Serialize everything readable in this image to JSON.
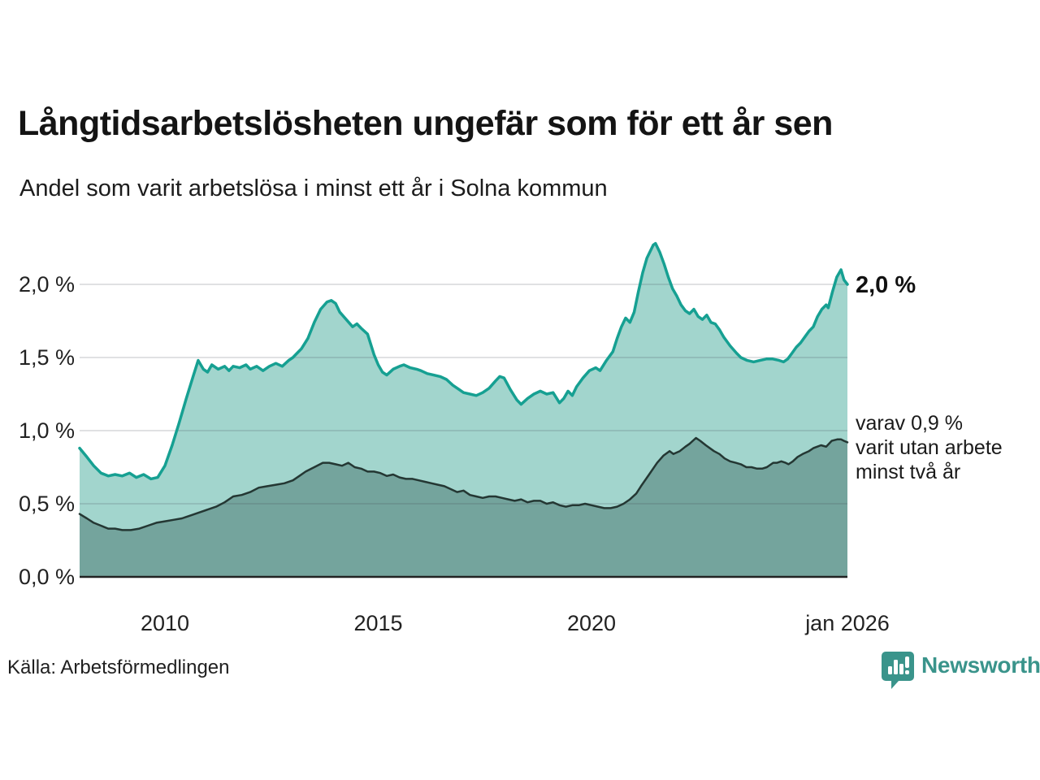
{
  "header": {
    "title": "Långtidsarbetslösheten ungefär som för ett år sen",
    "subtitle": "Andel som varit arbetslösa i minst ett år i Solna kommun"
  },
  "annotations": {
    "latest_total": "2,0 %",
    "subset_line1": "varav 0,9 %",
    "subset_line2": "varit utan arbete",
    "subset_line3": "minst två år"
  },
  "footer": {
    "source": "Källa: Arbetsförmedlingen",
    "brand": "Newsworthy"
  },
  "colors": {
    "long_term_line": "#16a092",
    "long_term_fill": "#a2d5cd",
    "two_year_line": "#243733",
    "two_year_fill": "#74a49d",
    "gridline": "rgba(60,70,80,0.16)",
    "axis": "#222222",
    "brand_teal": "#3a948b",
    "text": "#1a1a1a"
  },
  "chart_data": {
    "type": "area",
    "title": "Långtidsarbetslösheten ungefär som för ett år sen",
    "subtitle": "Andel som varit arbetslösa i minst ett år i Solna kommun",
    "xlabel": "",
    "ylabel": "",
    "x_domain": [
      2008,
      2026
    ],
    "y_domain": [
      0,
      2.4
    ],
    "grid": true,
    "legend_position": "none",
    "y_ticks": [
      {
        "value": 0.0,
        "label": "0,0 %"
      },
      {
        "value": 0.5,
        "label": "0,5 %"
      },
      {
        "value": 1.0,
        "label": "1,0 %"
      },
      {
        "value": 1.5,
        "label": "1,5 %"
      },
      {
        "value": 2.0,
        "label": "2,0 %"
      }
    ],
    "x_ticks": [
      {
        "value": 2010,
        "label": "2010"
      },
      {
        "value": 2015,
        "label": "2015"
      },
      {
        "value": 2020,
        "label": "2020"
      },
      {
        "value": 2026,
        "label": "jan 2026"
      }
    ],
    "series": [
      {
        "name": "Andel som varit arbetslösa i minst ett år",
        "latest_label": "2,0 %",
        "points": [
          [
            2008.0,
            0.88
          ],
          [
            2008.17,
            0.82
          ],
          [
            2008.33,
            0.76
          ],
          [
            2008.5,
            0.71
          ],
          [
            2008.67,
            0.69
          ],
          [
            2008.83,
            0.7
          ],
          [
            2009.0,
            0.69
          ],
          [
            2009.17,
            0.71
          ],
          [
            2009.33,
            0.68
          ],
          [
            2009.5,
            0.7
          ],
          [
            2009.67,
            0.67
          ],
          [
            2009.83,
            0.68
          ],
          [
            2010.0,
            0.76
          ],
          [
            2010.17,
            0.9
          ],
          [
            2010.33,
            1.05
          ],
          [
            2010.5,
            1.22
          ],
          [
            2010.67,
            1.38
          ],
          [
            2010.78,
            1.48
          ],
          [
            2010.9,
            1.42
          ],
          [
            2011.0,
            1.4
          ],
          [
            2011.1,
            1.45
          ],
          [
            2011.25,
            1.42
          ],
          [
            2011.4,
            1.44
          ],
          [
            2011.5,
            1.41
          ],
          [
            2011.6,
            1.44
          ],
          [
            2011.75,
            1.43
          ],
          [
            2011.9,
            1.45
          ],
          [
            2012.0,
            1.42
          ],
          [
            2012.15,
            1.44
          ],
          [
            2012.3,
            1.41
          ],
          [
            2012.45,
            1.44
          ],
          [
            2012.6,
            1.46
          ],
          [
            2012.75,
            1.44
          ],
          [
            2012.9,
            1.48
          ],
          [
            2013.0,
            1.5
          ],
          [
            2013.1,
            1.53
          ],
          [
            2013.2,
            1.56
          ],
          [
            2013.35,
            1.63
          ],
          [
            2013.5,
            1.74
          ],
          [
            2013.65,
            1.83
          ],
          [
            2013.8,
            1.88
          ],
          [
            2013.9,
            1.89
          ],
          [
            2014.0,
            1.87
          ],
          [
            2014.1,
            1.81
          ],
          [
            2014.25,
            1.76
          ],
          [
            2014.4,
            1.71
          ],
          [
            2014.5,
            1.73
          ],
          [
            2014.6,
            1.7
          ],
          [
            2014.75,
            1.66
          ],
          [
            2014.9,
            1.52
          ],
          [
            2015.0,
            1.45
          ],
          [
            2015.1,
            1.4
          ],
          [
            2015.2,
            1.38
          ],
          [
            2015.35,
            1.42
          ],
          [
            2015.5,
            1.44
          ],
          [
            2015.6,
            1.45
          ],
          [
            2015.75,
            1.43
          ],
          [
            2015.9,
            1.42
          ],
          [
            2016.0,
            1.41
          ],
          [
            2016.15,
            1.39
          ],
          [
            2016.3,
            1.38
          ],
          [
            2016.45,
            1.37
          ],
          [
            2016.6,
            1.35
          ],
          [
            2016.75,
            1.31
          ],
          [
            2016.9,
            1.28
          ],
          [
            2017.0,
            1.26
          ],
          [
            2017.15,
            1.25
          ],
          [
            2017.3,
            1.24
          ],
          [
            2017.45,
            1.26
          ],
          [
            2017.6,
            1.29
          ],
          [
            2017.75,
            1.34
          ],
          [
            2017.85,
            1.37
          ],
          [
            2017.95,
            1.36
          ],
          [
            2018.1,
            1.28
          ],
          [
            2018.25,
            1.21
          ],
          [
            2018.35,
            1.18
          ],
          [
            2018.5,
            1.22
          ],
          [
            2018.65,
            1.25
          ],
          [
            2018.8,
            1.27
          ],
          [
            2018.95,
            1.25
          ],
          [
            2019.1,
            1.26
          ],
          [
            2019.25,
            1.19
          ],
          [
            2019.35,
            1.22
          ],
          [
            2019.45,
            1.27
          ],
          [
            2019.55,
            1.24
          ],
          [
            2019.65,
            1.3
          ],
          [
            2019.8,
            1.36
          ],
          [
            2019.95,
            1.41
          ],
          [
            2020.1,
            1.43
          ],
          [
            2020.2,
            1.41
          ],
          [
            2020.35,
            1.48
          ],
          [
            2020.5,
            1.54
          ],
          [
            2020.6,
            1.63
          ],
          [
            2020.7,
            1.71
          ],
          [
            2020.8,
            1.77
          ],
          [
            2020.9,
            1.74
          ],
          [
            2021.0,
            1.81
          ],
          [
            2021.1,
            1.95
          ],
          [
            2021.2,
            2.08
          ],
          [
            2021.3,
            2.18
          ],
          [
            2021.45,
            2.27
          ],
          [
            2021.5,
            2.28
          ],
          [
            2021.6,
            2.22
          ],
          [
            2021.7,
            2.14
          ],
          [
            2021.8,
            2.05
          ],
          [
            2021.9,
            1.97
          ],
          [
            2022.0,
            1.92
          ],
          [
            2022.1,
            1.86
          ],
          [
            2022.2,
            1.82
          ],
          [
            2022.3,
            1.8
          ],
          [
            2022.4,
            1.83
          ],
          [
            2022.5,
            1.78
          ],
          [
            2022.6,
            1.76
          ],
          [
            2022.7,
            1.79
          ],
          [
            2022.8,
            1.74
          ],
          [
            2022.9,
            1.73
          ],
          [
            2023.0,
            1.69
          ],
          [
            2023.1,
            1.64
          ],
          [
            2023.25,
            1.58
          ],
          [
            2023.4,
            1.53
          ],
          [
            2023.5,
            1.5
          ],
          [
            2023.65,
            1.48
          ],
          [
            2023.8,
            1.47
          ],
          [
            2023.95,
            1.48
          ],
          [
            2024.1,
            1.49
          ],
          [
            2024.25,
            1.49
          ],
          [
            2024.4,
            1.48
          ],
          [
            2024.5,
            1.47
          ],
          [
            2024.6,
            1.49
          ],
          [
            2024.7,
            1.53
          ],
          [
            2024.8,
            1.57
          ],
          [
            2024.9,
            1.6
          ],
          [
            2025.0,
            1.64
          ],
          [
            2025.1,
            1.68
          ],
          [
            2025.2,
            1.71
          ],
          [
            2025.3,
            1.78
          ],
          [
            2025.4,
            1.83
          ],
          [
            2025.5,
            1.86
          ],
          [
            2025.55,
            1.84
          ],
          [
            2025.65,
            1.95
          ],
          [
            2025.75,
            2.05
          ],
          [
            2025.85,
            2.1
          ],
          [
            2025.92,
            2.03
          ],
          [
            2026.0,
            2.0
          ]
        ]
      },
      {
        "name": "varav utan arbete minst två år",
        "latest_label": "varav 0,9 % varit utan arbete minst två år",
        "points": [
          [
            2008.0,
            0.43
          ],
          [
            2008.17,
            0.4
          ],
          [
            2008.33,
            0.37
          ],
          [
            2008.5,
            0.35
          ],
          [
            2008.67,
            0.33
          ],
          [
            2008.83,
            0.33
          ],
          [
            2009.0,
            0.32
          ],
          [
            2009.2,
            0.32
          ],
          [
            2009.4,
            0.33
          ],
          [
            2009.6,
            0.35
          ],
          [
            2009.8,
            0.37
          ],
          [
            2010.0,
            0.38
          ],
          [
            2010.2,
            0.39
          ],
          [
            2010.4,
            0.4
          ],
          [
            2010.6,
            0.42
          ],
          [
            2010.8,
            0.44
          ],
          [
            2011.0,
            0.46
          ],
          [
            2011.2,
            0.48
          ],
          [
            2011.4,
            0.51
          ],
          [
            2011.6,
            0.55
          ],
          [
            2011.8,
            0.56
          ],
          [
            2012.0,
            0.58
          ],
          [
            2012.2,
            0.61
          ],
          [
            2012.4,
            0.62
          ],
          [
            2012.6,
            0.63
          ],
          [
            2012.8,
            0.64
          ],
          [
            2013.0,
            0.66
          ],
          [
            2013.15,
            0.69
          ],
          [
            2013.3,
            0.72
          ],
          [
            2013.5,
            0.75
          ],
          [
            2013.7,
            0.78
          ],
          [
            2013.85,
            0.78
          ],
          [
            2014.0,
            0.77
          ],
          [
            2014.15,
            0.76
          ],
          [
            2014.3,
            0.78
          ],
          [
            2014.45,
            0.75
          ],
          [
            2014.6,
            0.74
          ],
          [
            2014.75,
            0.72
          ],
          [
            2014.9,
            0.72
          ],
          [
            2015.05,
            0.71
          ],
          [
            2015.2,
            0.69
          ],
          [
            2015.35,
            0.7
          ],
          [
            2015.5,
            0.68
          ],
          [
            2015.65,
            0.67
          ],
          [
            2015.8,
            0.67
          ],
          [
            2015.95,
            0.66
          ],
          [
            2016.1,
            0.65
          ],
          [
            2016.25,
            0.64
          ],
          [
            2016.4,
            0.63
          ],
          [
            2016.55,
            0.62
          ],
          [
            2016.7,
            0.6
          ],
          [
            2016.85,
            0.58
          ],
          [
            2017.0,
            0.59
          ],
          [
            2017.15,
            0.56
          ],
          [
            2017.3,
            0.55
          ],
          [
            2017.45,
            0.54
          ],
          [
            2017.6,
            0.55
          ],
          [
            2017.75,
            0.55
          ],
          [
            2017.9,
            0.54
          ],
          [
            2018.05,
            0.53
          ],
          [
            2018.2,
            0.52
          ],
          [
            2018.35,
            0.53
          ],
          [
            2018.5,
            0.51
          ],
          [
            2018.65,
            0.52
          ],
          [
            2018.8,
            0.52
          ],
          [
            2018.95,
            0.5
          ],
          [
            2019.1,
            0.51
          ],
          [
            2019.25,
            0.49
          ],
          [
            2019.4,
            0.48
          ],
          [
            2019.55,
            0.49
          ],
          [
            2019.7,
            0.49
          ],
          [
            2019.85,
            0.5
          ],
          [
            2020.0,
            0.49
          ],
          [
            2020.15,
            0.48
          ],
          [
            2020.3,
            0.47
          ],
          [
            2020.45,
            0.47
          ],
          [
            2020.6,
            0.48
          ],
          [
            2020.75,
            0.5
          ],
          [
            2020.9,
            0.53
          ],
          [
            2021.05,
            0.57
          ],
          [
            2021.16,
            0.62
          ],
          [
            2021.35,
            0.7
          ],
          [
            2021.54,
            0.78
          ],
          [
            2021.69,
            0.83
          ],
          [
            2021.83,
            0.86
          ],
          [
            2021.92,
            0.84
          ],
          [
            2022.07,
            0.86
          ],
          [
            2022.2,
            0.89
          ],
          [
            2022.3,
            0.91
          ],
          [
            2022.45,
            0.95
          ],
          [
            2022.55,
            0.93
          ],
          [
            2022.68,
            0.9
          ],
          [
            2022.87,
            0.86
          ],
          [
            2023.0,
            0.84
          ],
          [
            2023.12,
            0.81
          ],
          [
            2023.25,
            0.79
          ],
          [
            2023.38,
            0.78
          ],
          [
            2023.5,
            0.77
          ],
          [
            2023.63,
            0.75
          ],
          [
            2023.75,
            0.75
          ],
          [
            2023.88,
            0.74
          ],
          [
            2024.0,
            0.74
          ],
          [
            2024.11,
            0.75
          ],
          [
            2024.26,
            0.78
          ],
          [
            2024.35,
            0.78
          ],
          [
            2024.45,
            0.79
          ],
          [
            2024.55,
            0.78
          ],
          [
            2024.62,
            0.77
          ],
          [
            2024.72,
            0.79
          ],
          [
            2024.83,
            0.82
          ],
          [
            2024.95,
            0.84
          ],
          [
            2025.1,
            0.86
          ],
          [
            2025.2,
            0.88
          ],
          [
            2025.29,
            0.89
          ],
          [
            2025.38,
            0.9
          ],
          [
            2025.5,
            0.89
          ],
          [
            2025.63,
            0.93
          ],
          [
            2025.76,
            0.94
          ],
          [
            2025.85,
            0.94
          ],
          [
            2025.92,
            0.93
          ],
          [
            2026.0,
            0.92
          ]
        ]
      }
    ]
  }
}
